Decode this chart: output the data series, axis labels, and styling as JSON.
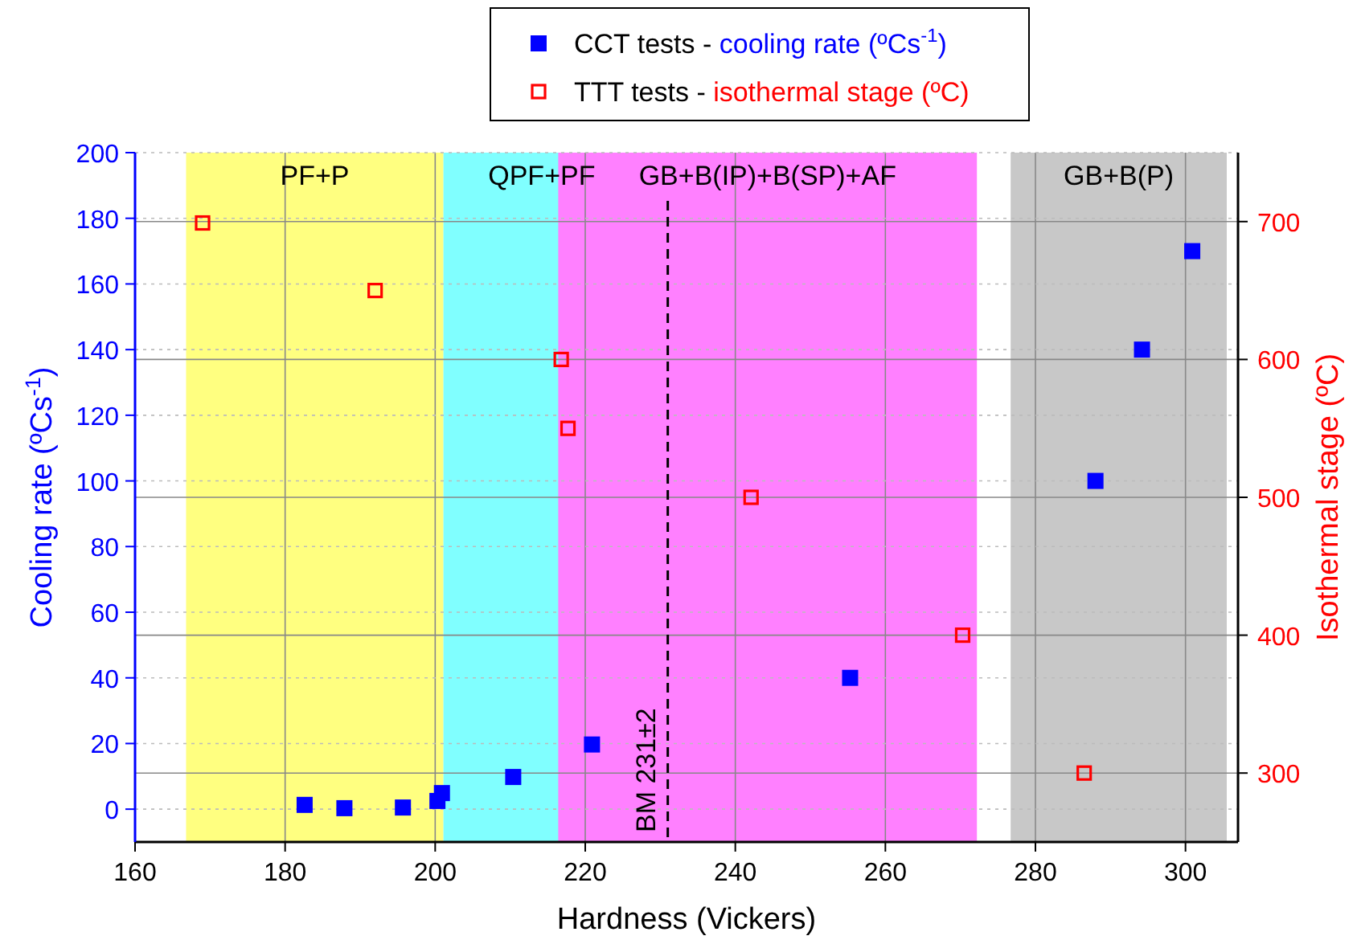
{
  "chart_data": {
    "type": "scatter",
    "xlabel": "Hardness (Vickers)",
    "ylabel": "Cooling rate (ºCs$^{-1}$)",
    "y2label": "Isothermal stage (ºC)",
    "xlim": [
      160,
      307
    ],
    "xticks": [
      160,
      180,
      200,
      220,
      240,
      260,
      280,
      300
    ],
    "ylim": [
      -10,
      200
    ],
    "yticks": [
      0,
      20,
      40,
      60,
      80,
      100,
      120,
      140,
      160,
      180,
      200
    ],
    "y2lim": [
      250,
      750
    ],
    "y2ticks": [
      300,
      400,
      500,
      600,
      700
    ],
    "grid": true,
    "legend": "top",
    "marker": "square",
    "series": [
      {
        "name": "CCT tests - cooling rate (ºCs$^{-1}$)",
        "color": "#0000ff",
        "x": [
          182.6,
          187.9,
          195.7,
          200.3,
          200.9,
          210.4,
          220.9,
          255.3,
          288,
          294.2,
          300.9
        ],
        "values": [
          1.3,
          0.3,
          0.5,
          2.5,
          4.9,
          9.8,
          19.7,
          40,
          100,
          140,
          170
        ]
      },
      {
        "name": "TTT tests  - isothermal stage (ºC)",
        "color": "#ff0000",
        "axis": "y2",
        "x": [
          169,
          192,
          216.8,
          217.7,
          242.1,
          270.3,
          286.5
        ],
        "values": [
          699,
          650,
          600,
          550,
          500,
          400,
          300
        ]
      }
    ],
    "bands": [
      {
        "axis": "x",
        "from": 166.8,
        "to": 201.1,
        "label": "PF+P",
        "color": "#ffff80"
      },
      {
        "axis": "x",
        "from": 201.1,
        "to": 227.3,
        "label": "QPF+PF",
        "color": "#80ffff"
      },
      {
        "axis": "x",
        "from": 216.4,
        "to": 272.2,
        "label": "GB+B(IP)+B(SP)+AF",
        "color": "#ff80ff"
      },
      {
        "axis": "x",
        "from": 276.7,
        "to": 305.5,
        "label": "GB+B(P)",
        "color": "#c8c8c8"
      }
    ],
    "ref_lines": [
      {
        "axis": "x",
        "value": 231,
        "label": "BM 231±2",
        "line_style": "dashed",
        "color": "#000000"
      }
    ]
  }
}
